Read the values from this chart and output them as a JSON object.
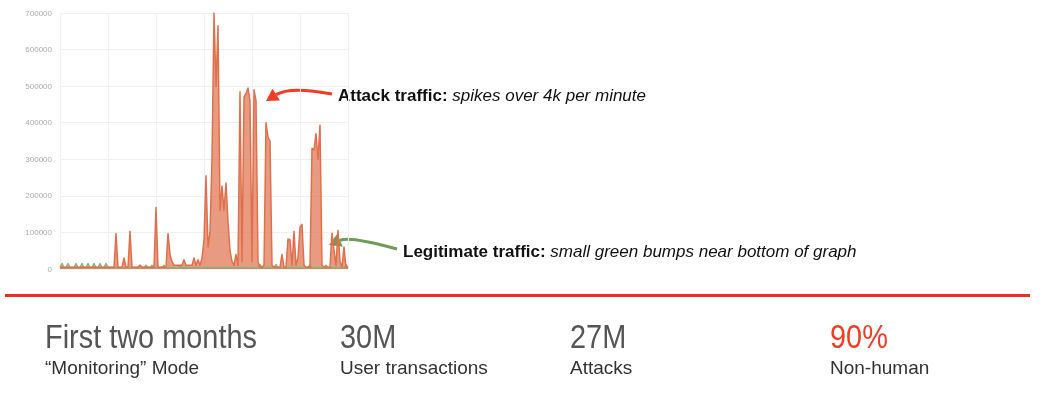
{
  "chart_data": [
    {
      "type": "area",
      "categories": [
        null,
        null,
        null,
        null,
        null,
        null,
        null,
        null,
        null,
        null,
        null,
        null,
        null,
        null,
        null,
        null,
        null,
        null,
        null,
        null,
        null,
        null,
        null,
        null,
        null,
        null,
        null,
        null,
        null,
        null,
        null,
        null,
        null,
        null,
        null,
        null,
        null,
        null,
        null,
        null,
        null,
        null,
        null,
        null,
        null,
        null,
        null,
        null,
        null,
        null,
        null,
        null,
        null,
        null,
        null,
        null,
        null,
        null,
        null,
        null,
        null,
        null,
        null,
        null,
        null,
        null,
        null,
        null,
        null,
        null,
        null,
        null,
        null,
        null,
        null,
        null,
        null,
        null,
        null,
        null,
        null,
        null,
        null,
        null,
        null,
        null,
        null,
        null,
        null,
        null,
        null,
        null,
        null,
        null,
        null,
        null,
        null,
        null,
        null,
        null,
        null,
        null,
        null,
        null,
        null,
        null,
        null,
        null,
        null,
        null,
        null,
        null,
        null,
        null,
        null,
        null,
        null,
        null,
        null,
        null,
        null,
        null,
        null,
        null,
        null,
        null,
        null,
        null,
        null,
        null,
        null,
        null,
        null,
        null,
        null,
        null,
        null,
        null,
        null,
        null,
        null,
        null,
        null,
        null,
        null
      ],
      "series": [
        {
          "color": "#8fb07c",
          "values": [
            4000,
            15000,
            4000,
            4000,
            15000,
            4000,
            4000,
            4000,
            15000,
            4000,
            4000,
            15000,
            4000,
            4000,
            15000,
            4000,
            4000,
            15000,
            4000,
            4000,
            15000,
            4000,
            4000,
            15000,
            4000,
            4000,
            4000,
            4000,
            4000,
            4000,
            4000,
            4000,
            4000,
            4000,
            4000,
            4000,
            4000,
            4000,
            4000,
            4000,
            10000,
            4000,
            4000,
            10000,
            4000,
            4000,
            10000,
            4000,
            4000,
            4000,
            4000,
            4000,
            10000,
            4000,
            4000,
            4000,
            4000,
            4000,
            4000,
            4000,
            10000,
            4000,
            4000,
            4000,
            4000,
            4000,
            4000,
            4000,
            4000,
            4000,
            4000,
            4000,
            4000,
            4000,
            4000,
            4000,
            4000,
            4000,
            4000,
            4000,
            4000,
            4000,
            4000,
            4000,
            4000,
            4000,
            4000,
            4000,
            4000,
            4000,
            4000,
            4000,
            4000,
            4000,
            4000,
            4000,
            4000,
            4000,
            4000,
            4000,
            12000,
            4000,
            4000,
            4000,
            4000,
            4000,
            4000,
            4000,
            12000,
            4000,
            4000,
            4000,
            4000,
            4000,
            4000,
            4000,
            4000,
            4000,
            4000,
            4000,
            4000,
            4000,
            4000,
            4000,
            4000,
            12000,
            4000,
            4000,
            4000,
            4000,
            4000,
            4000,
            4000,
            10000,
            4000,
            4000,
            4000,
            4000,
            4000,
            4000,
            4000,
            4000,
            4000,
            12000,
            4000
          ]
        },
        {
          "color": "#e0704c",
          "values": [
            5000,
            5000,
            5000,
            5000,
            5000,
            5000,
            5000,
            5000,
            5000,
            5000,
            5000,
            5000,
            5000,
            5000,
            5000,
            5000,
            5000,
            5000,
            5000,
            5000,
            5000,
            5000,
            5000,
            5000,
            5000,
            5000,
            5000,
            5000,
            97000,
            5000,
            5000,
            5000,
            30000,
            5000,
            5000,
            103000,
            5000,
            5000,
            5000,
            5000,
            10000,
            5000,
            5000,
            5000,
            5000,
            5000,
            5000,
            5000,
            168000,
            5000,
            5000,
            5000,
            5000,
            5000,
            97000,
            40000,
            20000,
            10000,
            10000,
            10000,
            10000,
            10000,
            25000,
            10000,
            10000,
            10000,
            10000,
            30000,
            10000,
            25000,
            10000,
            30000,
            80000,
            255000,
            60000,
            100000,
            300000,
            700000,
            500000,
            665000,
            160000,
            227000,
            160000,
            235000,
            130000,
            50000,
            20000,
            10000,
            40000,
            10000,
            485000,
            20000,
            470000,
            480000,
            495000,
            460000,
            20000,
            490000,
            460000,
            20000,
            5000,
            5000,
            10000,
            400000,
            360000,
            350000,
            10000,
            5000,
            5000,
            5000,
            5000,
            40000,
            5000,
            5000,
            82000,
            80000,
            10000,
            103000,
            10000,
            30000,
            115000,
            122000,
            10000,
            5000,
            5000,
            5000,
            330000,
            325000,
            370000,
            300000,
            393000,
            10000,
            5000,
            5000,
            5000,
            5000,
            98000,
            50000,
            10000,
            105000,
            20000,
            5000,
            60000,
            5000,
            5000
          ]
        }
      ],
      "ylim": [
        0,
        700000
      ],
      "yticks": [
        0,
        100000,
        200000,
        300000,
        400000,
        500000,
        600000,
        700000
      ],
      "grid": true,
      "tick_labels": "y",
      "annotations": [
        "Attack traffic: spikes over 4k per minute",
        "Legitimate traffic: small green bumps near bottom of graph"
      ]
    },
    {
      "type": "other",
      "annotations": [
        "First two months",
        "“Monitoring” Mode",
        "30M",
        "User transactions",
        "27M",
        "Attacks",
        "90%",
        "Non-human"
      ],
      "colors": [
        "#555555",
        "#555555",
        "#555555",
        "#f03c24"
      ]
    }
  ]
}
